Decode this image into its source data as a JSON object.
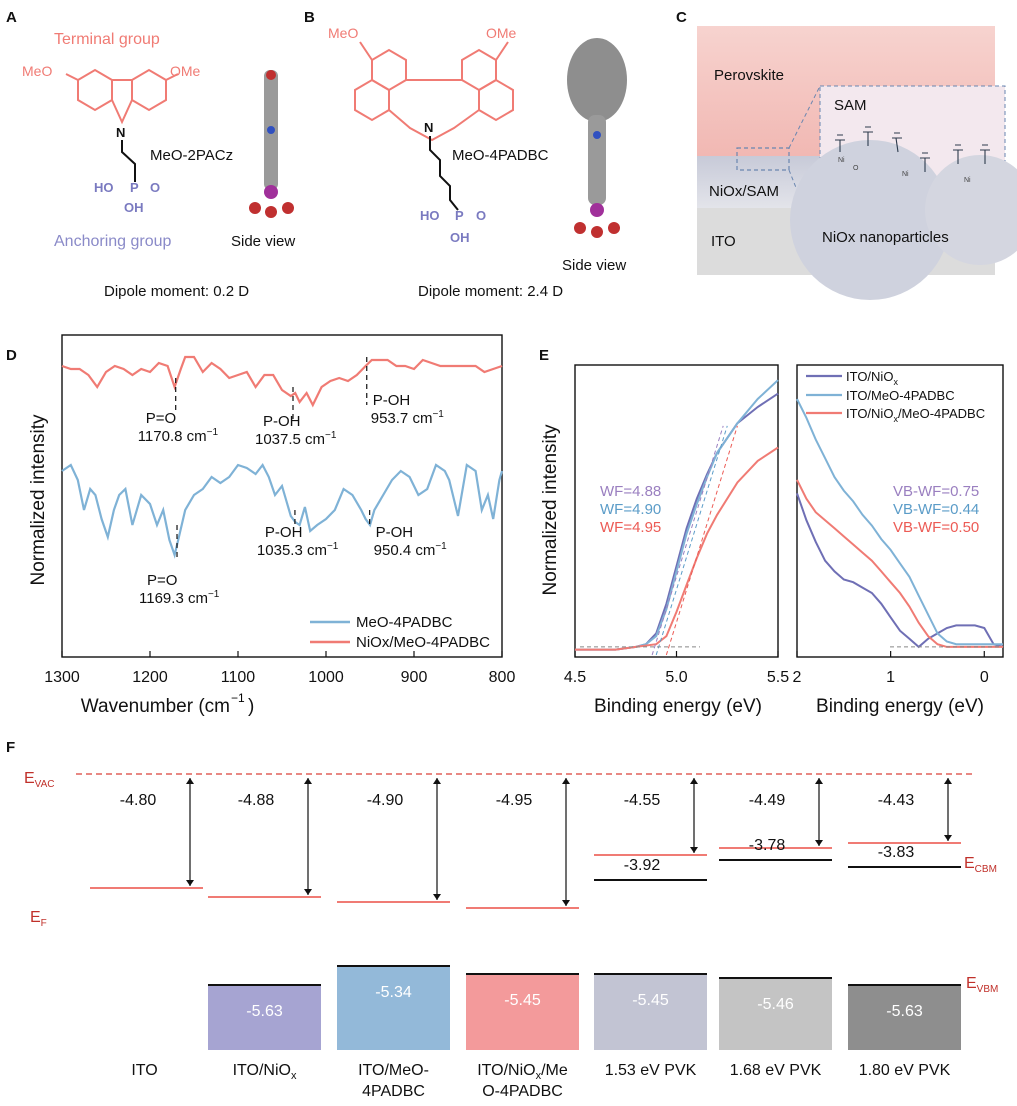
{
  "panels": {
    "A": {
      "label": "A",
      "terminal": "Terminal group",
      "meo_left": "MeO",
      "meo_right": "OMe",
      "n": "N",
      "name": "MeO-2PACz",
      "ho": "HO",
      "p": "P",
      "o": "O",
      "oh": "OH",
      "anchoring": "Anchoring group",
      "side_view": "Side view",
      "dipole": "Dipole moment: 0.2 D"
    },
    "B": {
      "label": "B",
      "meo_left": "MeO",
      "meo_right": "OMe",
      "n": "N",
      "name": "MeO-4PADBC",
      "ho": "HO",
      "p": "P",
      "o": "O",
      "oh": "OH",
      "side_view": "Side view",
      "dipole": "Dipole moment: 2.4 D"
    },
    "C": {
      "label": "C",
      "perovskite": "Perovskite",
      "nio_sam": "NiOx/SAM",
      "ito": "ITO",
      "sam": "SAM",
      "nanoparticles": "NiOx nanoparticles",
      "ni": "Ni",
      "o": "O"
    },
    "D": {
      "label": "D"
    },
    "E": {
      "label": "E"
    },
    "F": {
      "label": "F"
    }
  },
  "chart_data": [
    {
      "panel": "D",
      "type": "line",
      "xlabel": "Wavenumber (cm-1)",
      "ylabel": "Normalized intensity",
      "xlim": [
        1300,
        800
      ],
      "xticks": [
        "1300",
        "1200",
        "1100",
        "1000",
        "900",
        "800"
      ],
      "series": [
        {
          "name": "NiOx/MeO-4PADBC",
          "color": "#f07b74",
          "x": [
            1300,
            1290,
            1280,
            1270,
            1260,
            1250,
            1240,
            1230,
            1220,
            1210,
            1200,
            1190,
            1180,
            1172,
            1165,
            1160,
            1150,
            1140,
            1130,
            1120,
            1110,
            1100,
            1090,
            1080,
            1070,
            1060,
            1050,
            1040,
            1035,
            1030,
            1022,
            1015,
            1005,
            995,
            985,
            975,
            965,
            955,
            948,
            940,
            930,
            920,
            910,
            900,
            890,
            880,
            870,
            860,
            850,
            840,
            830,
            820,
            810,
            800
          ],
          "y": [
            0.93,
            0.92,
            0.92,
            0.9,
            0.86,
            0.91,
            0.93,
            0.92,
            0.9,
            0.92,
            0.91,
            0.94,
            0.93,
            0.86,
            0.92,
            0.96,
            0.96,
            0.91,
            0.94,
            0.92,
            0.89,
            0.9,
            0.91,
            0.86,
            0.9,
            0.9,
            0.85,
            0.83,
            0.84,
            0.81,
            0.84,
            0.8,
            0.86,
            0.88,
            0.89,
            0.88,
            0.9,
            0.93,
            0.95,
            0.95,
            0.95,
            0.93,
            0.93,
            0.92,
            0.95,
            0.94,
            0.93,
            0.93,
            0.93,
            0.93,
            0.93,
            0.91,
            0.92,
            0.93
          ]
        },
        {
          "name": "MeO-4PADBC",
          "color": "#7fb2d6",
          "x": [
            1300,
            1290,
            1282,
            1275,
            1268,
            1262,
            1255,
            1248,
            1241,
            1235,
            1228,
            1220,
            1210,
            1200,
            1192,
            1185,
            1178,
            1172,
            1168,
            1160,
            1150,
            1140,
            1130,
            1120,
            1110,
            1100,
            1090,
            1080,
            1072,
            1065,
            1058,
            1050,
            1045,
            1040,
            1035,
            1030,
            1024,
            1018,
            1010,
            1000,
            990,
            980,
            970,
            960,
            955,
            950,
            945,
            935,
            925,
            915,
            905,
            895,
            885,
            875,
            865,
            860,
            850,
            840,
            830,
            823,
            816,
            810,
            803,
            800
          ],
          "y": [
            0.58,
            0.6,
            0.55,
            0.45,
            0.52,
            0.5,
            0.42,
            0.36,
            0.45,
            0.5,
            0.52,
            0.4,
            0.5,
            0.47,
            0.4,
            0.45,
            0.35,
            0.3,
            0.35,
            0.45,
            0.5,
            0.52,
            0.56,
            0.54,
            0.56,
            0.6,
            0.59,
            0.57,
            0.6,
            0.56,
            0.5,
            0.53,
            0.48,
            0.43,
            0.41,
            0.4,
            0.46,
            0.38,
            0.4,
            0.42,
            0.45,
            0.52,
            0.5,
            0.45,
            0.42,
            0.4,
            0.45,
            0.5,
            0.55,
            0.58,
            0.56,
            0.5,
            0.52,
            0.6,
            0.58,
            0.55,
            0.43,
            0.6,
            0.58,
            0.45,
            0.5,
            0.42,
            0.55,
            0.58
          ]
        }
      ],
      "annotations": [
        {
          "x": 1170.8,
          "line_from": 0.89,
          "line_to": 0.78,
          "bond": "P=O",
          "value": "1170.8 cm-1",
          "text_y": 0.74
        },
        {
          "x": 1037.5,
          "line_from": 0.86,
          "line_to": 0.74,
          "bond": "P-OH",
          "value": "1037.5 cm-1",
          "text_y": 0.73
        },
        {
          "x": 953.7,
          "line_from": 0.96,
          "line_to": 0.8,
          "bond": "P-OH",
          "value": "953.7 cm-1",
          "text_y": 0.8
        },
        {
          "x": 1169.3,
          "line_from": 0.4,
          "line_to": 0.28,
          "bond": "P=O",
          "value": "1169.3 cm-1",
          "text_y": 0.2
        },
        {
          "x": 1035.3,
          "line_from": 0.45,
          "line_to": 0.4,
          "bond": "P-OH",
          "value": "1035.3 cm-1",
          "text_y": 0.36
        },
        {
          "x": 950.4,
          "line_from": 0.45,
          "line_to": 0.4,
          "bond": "P-OH",
          "value": "950.4 cm-1",
          "text_y": 0.36
        }
      ]
    },
    {
      "panel": "E-left",
      "type": "line",
      "xlabel": "Binding energy (eV)",
      "ylabel": "Normalized intensity",
      "xlim": [
        4.5,
        5.5
      ],
      "xticks": [
        "4.5",
        "5.0",
        "5.5"
      ],
      "series": [
        {
          "name": "ITO/NiOx",
          "color": "#6f6fb5",
          "x": [
            4.5,
            4.7,
            4.8,
            4.85,
            4.9,
            4.95,
            5.0,
            5.05,
            5.1,
            5.15,
            5.2,
            5.3,
            5.4,
            5.5
          ],
          "y": [
            0.02,
            0.02,
            0.03,
            0.04,
            0.08,
            0.19,
            0.33,
            0.47,
            0.58,
            0.67,
            0.75,
            0.86,
            0.92,
            0.97
          ]
        },
        {
          "name": "ITO/MeO-4PADBC",
          "color": "#7fb2d6",
          "x": [
            4.5,
            4.7,
            4.8,
            4.85,
            4.9,
            4.95,
            5.0,
            5.05,
            5.1,
            5.15,
            5.2,
            5.3,
            5.4,
            5.5
          ],
          "y": [
            0.02,
            0.02,
            0.03,
            0.04,
            0.07,
            0.17,
            0.31,
            0.45,
            0.56,
            0.66,
            0.75,
            0.86,
            0.95,
            1.02
          ]
        },
        {
          "name": "ITO/NiOx/MeO-4PADBC",
          "color": "#f07b74",
          "x": [
            4.5,
            4.7,
            4.8,
            4.9,
            4.95,
            5.0,
            5.05,
            5.1,
            5.15,
            5.2,
            5.3,
            5.4,
            5.5
          ],
          "y": [
            0.02,
            0.02,
            0.03,
            0.04,
            0.07,
            0.16,
            0.26,
            0.36,
            0.45,
            0.52,
            0.64,
            0.72,
            0.77
          ]
        }
      ],
      "labels": [
        {
          "text": "WF=4.88",
          "color": "#9a7fc0"
        },
        {
          "text": "WF=4.90",
          "color": "#5b9cc8"
        },
        {
          "text": "WF=4.95",
          "color": "#ec5b55"
        }
      ]
    },
    {
      "panel": "E-right",
      "type": "line",
      "xlabel": "Binding energy (eV)",
      "xlim": [
        2,
        -0.2
      ],
      "xticks": [
        "2",
        "1",
        "0"
      ],
      "legend": [
        "ITO/NiOx",
        "ITO/MeO-4PADBC",
        "ITO/NiOx/MeO-4PADBC"
      ],
      "series": [
        {
          "name": "ITO/NiOx",
          "color": "#6f6fb5",
          "x": [
            2,
            1.9,
            1.8,
            1.7,
            1.6,
            1.5,
            1.4,
            1.3,
            1.2,
            1.1,
            1.0,
            0.9,
            0.8,
            0.7,
            0.6,
            0.5,
            0.4,
            0.3,
            0.2,
            0.1,
            0.0,
            -0.1,
            -0.2
          ],
          "y": [
            0.6,
            0.5,
            0.42,
            0.35,
            0.31,
            0.28,
            0.27,
            0.25,
            0.23,
            0.19,
            0.14,
            0.09,
            0.06,
            0.03,
            0.06,
            0.08,
            0.1,
            0.11,
            0.11,
            0.11,
            0.1,
            0.04,
            0.03
          ]
        },
        {
          "name": "ITO/MeO-4PADBC",
          "color": "#7fb2d6",
          "x": [
            2,
            1.9,
            1.8,
            1.7,
            1.6,
            1.5,
            1.4,
            1.3,
            1.2,
            1.1,
            1.0,
            0.9,
            0.8,
            0.7,
            0.6,
            0.5,
            0.4,
            0.3,
            0.2,
            0.1,
            0.0,
            -0.2
          ],
          "y": [
            0.95,
            0.88,
            0.8,
            0.73,
            0.66,
            0.61,
            0.57,
            0.52,
            0.48,
            0.43,
            0.39,
            0.34,
            0.29,
            0.22,
            0.15,
            0.08,
            0.05,
            0.04,
            0.04,
            0.04,
            0.04,
            0.04
          ]
        },
        {
          "name": "ITO/NiOx/MeO-4PADBC",
          "color": "#f07b74",
          "x": [
            2,
            1.9,
            1.8,
            1.7,
            1.6,
            1.5,
            1.4,
            1.3,
            1.2,
            1.1,
            1.0,
            0.9,
            0.8,
            0.7,
            0.6,
            0.5,
            0.4,
            0.3,
            0.2,
            0.0,
            -0.2
          ],
          "y": [
            0.65,
            0.58,
            0.53,
            0.5,
            0.47,
            0.44,
            0.41,
            0.38,
            0.35,
            0.31,
            0.27,
            0.23,
            0.18,
            0.12,
            0.07,
            0.04,
            0.03,
            0.03,
            0.03,
            0.03,
            0.03
          ]
        }
      ],
      "labels": [
        {
          "text": "VB-WF=0.75",
          "color": "#9a7fc0"
        },
        {
          "text": "VB-WF=0.44",
          "color": "#5b9cc8"
        },
        {
          "text": "VB-WF=0.50",
          "color": "#ec5b55"
        }
      ]
    },
    {
      "panel": "F",
      "type": "bar",
      "evac_label": "EVAC",
      "ef_label": "EF",
      "ecbm_label": "ECBM",
      "evbm_label": "EVBM",
      "categories": [
        "ITO",
        "ITO/NiOx",
        "ITO/MeO-4PADBC",
        "ITO/NiOx/MeO-4PADBC",
        "1.53 eV PVK",
        "1.68 eV PVK",
        "1.80 eV PVK"
      ],
      "ef": [
        "-4.80",
        "-4.88",
        "-4.90",
        "-4.95",
        "-4.55",
        "-4.49",
        "-4.43"
      ],
      "cbm": [
        null,
        null,
        null,
        null,
        "-3.92",
        "-3.78",
        "-3.83"
      ],
      "vbm": [
        null,
        "-5.63",
        "-5.34",
        "-5.45",
        "-5.45",
        "-5.46",
        "-5.63"
      ],
      "vbm_colors": [
        null,
        "#a6a4d2",
        "#93b9d9",
        "#f39a9b",
        "#c2c4d3",
        "#c4c4c4",
        "#8e8e8e"
      ]
    }
  ]
}
